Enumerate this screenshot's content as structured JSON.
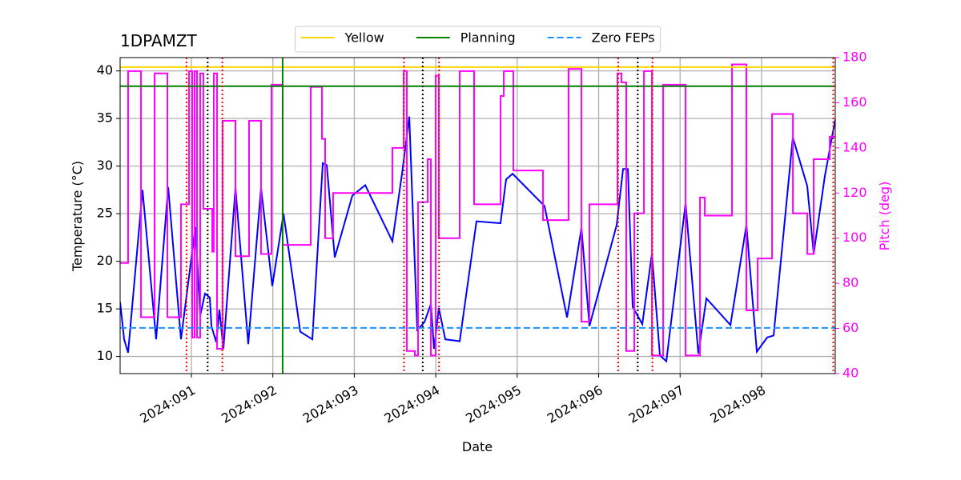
{
  "chart_data": {
    "type": "line",
    "title": "1DPAMZT",
    "xlabel": "Date",
    "ylabel": "Temperature (°C)",
    "y2label": "Pitch (deg)",
    "xlim": [
      90.125,
      98.905
    ],
    "xticks": [
      {
        "value": 91,
        "label": "2024:091"
      },
      {
        "value": 92,
        "label": "2024:092"
      },
      {
        "value": 93,
        "label": "2024:093"
      },
      {
        "value": 94,
        "label": "2024:094"
      },
      {
        "value": 95,
        "label": "2024:095"
      },
      {
        "value": 96,
        "label": "2024:096"
      },
      {
        "value": 97,
        "label": "2024:097"
      },
      {
        "value": 98,
        "label": "2024:098"
      }
    ],
    "ylim": [
      8.2,
      41.4
    ],
    "yticks": [
      10,
      15,
      20,
      25,
      30,
      35,
      40
    ],
    "y2lim": [
      40,
      180
    ],
    "y2ticks": [
      40,
      60,
      80,
      100,
      120,
      140,
      160,
      180
    ],
    "y2color": "#ff00ff",
    "grid": true,
    "legend": "upper center",
    "series": [
      {
        "color": "#0000ff",
        "x": [
          90.125,
          90.174,
          90.223,
          90.4,
          90.567,
          90.715,
          90.872,
          91.049,
          91.108,
          91.167,
          91.226,
          91.246,
          91.305,
          91.344,
          91.393,
          91.541,
          91.698,
          91.855,
          91.993,
          92.131,
          92.337,
          92.485,
          92.613,
          92.662,
          92.76,
          92.976,
          93.134,
          93.468,
          93.586,
          93.675,
          93.773,
          93.861,
          93.94,
          93.979,
          94.038,
          94.117,
          94.294,
          94.5,
          94.795,
          94.864,
          94.943,
          95.336,
          95.612,
          95.789,
          95.887,
          96.221,
          96.3,
          96.359,
          96.418,
          96.536,
          96.654,
          96.752,
          96.831,
          97.067,
          97.224,
          97.323,
          97.618,
          97.814,
          97.942,
          98.07,
          98.148,
          98.384,
          98.561,
          98.64,
          98.778,
          98.905
        ],
        "values": [
          15.7,
          11.8,
          10.4,
          27.5,
          11.8,
          27.8,
          11.8,
          23.6,
          14.3,
          16.6,
          16.2,
          13.2,
          11.5,
          14.9,
          10.8,
          27.7,
          11.3,
          27.7,
          17.4,
          25.0,
          12.6,
          11.8,
          30.3,
          30.1,
          20.4,
          26.9,
          28.0,
          22.1,
          29.2,
          35.2,
          12.8,
          13.6,
          15.5,
          10.8,
          15.1,
          11.8,
          11.6,
          24.2,
          24.0,
          28.6,
          29.2,
          25.8,
          14.1,
          23.5,
          13.2,
          23.8,
          29.7,
          29.7,
          15.2,
          13.4,
          20.8,
          10.1,
          9.5,
          26.1,
          10.3,
          16.1,
          13.3,
          23.8,
          10.5,
          12.0,
          12.2,
          33.0,
          27.9,
          20.8,
          29.0,
          34.9
        ]
      },
      {
        "color": "#ff00ff",
        "axis": "y2",
        "drawstyle": "steps-post",
        "x": [
          90.125,
          90.223,
          90.381,
          90.548,
          90.705,
          90.872,
          90.971,
          91.01,
          91.039,
          91.069,
          91.108,
          91.147,
          91.256,
          91.275,
          91.315,
          91.384,
          91.541,
          91.708,
          91.855,
          91.983,
          92.121,
          92.465,
          92.603,
          92.642,
          92.74,
          93.468,
          93.606,
          93.645,
          93.743,
          93.783,
          93.901,
          93.94,
          93.999,
          94.038,
          94.294,
          94.471,
          94.796,
          94.835,
          94.953,
          95.317,
          95.631,
          95.789,
          95.887,
          96.231,
          96.28,
          96.339,
          96.438,
          96.556,
          96.654,
          96.792,
          97.067,
          97.244,
          97.303,
          97.637,
          97.814,
          97.952,
          98.129,
          98.385,
          98.562,
          98.64,
          98.837
        ],
        "values": [
          89,
          174,
          65,
          173,
          65,
          115,
          174,
          56,
          174,
          56,
          173,
          113,
          94,
          173,
          51,
          152,
          92,
          152,
          93,
          168,
          97,
          167,
          144,
          100,
          120,
          140,
          174,
          50,
          48,
          116,
          135,
          48,
          172,
          100,
          174,
          115,
          163,
          174,
          130,
          108,
          175,
          63,
          115,
          173,
          169,
          50,
          111,
          174,
          48,
          168,
          48,
          118,
          110,
          177,
          68,
          91,
          155,
          111,
          93,
          135,
          145
        ]
      }
    ],
    "hlines": [
      {
        "name": "Yellow",
        "value": 40.4,
        "color": "#ffd700",
        "linestyle": "solid"
      },
      {
        "name": "Planning",
        "value": 38.4,
        "color": "#008000",
        "linestyle": "solid"
      },
      {
        "name": "Zero FEPs",
        "value": 13,
        "color": "#1e90ff",
        "linestyle": "dashed"
      }
    ],
    "vlines": [
      {
        "x": 92.12,
        "color": "#008000",
        "linestyle": "solid"
      },
      {
        "x": 90.94,
        "color": "#ff0000",
        "linestyle": "dotted"
      },
      {
        "x": 91.38,
        "color": "#ff0000",
        "linestyle": "dotted"
      },
      {
        "x": 93.61,
        "color": "#ff0000",
        "linestyle": "dotted"
      },
      {
        "x": 94.04,
        "color": "#ff0000",
        "linestyle": "dotted"
      },
      {
        "x": 96.24,
        "color": "#ff0000",
        "linestyle": "dotted"
      },
      {
        "x": 96.66,
        "color": "#ff0000",
        "linestyle": "dotted"
      },
      {
        "x": 98.88,
        "color": "#ff0000",
        "linestyle": "dotted"
      },
      {
        "x": 91.2,
        "color": "#000000",
        "linestyle": "dotted"
      },
      {
        "x": 93.84,
        "color": "#000000",
        "linestyle": "dotted"
      },
      {
        "x": 96.48,
        "color": "#000000",
        "linestyle": "dotted"
      }
    ]
  }
}
